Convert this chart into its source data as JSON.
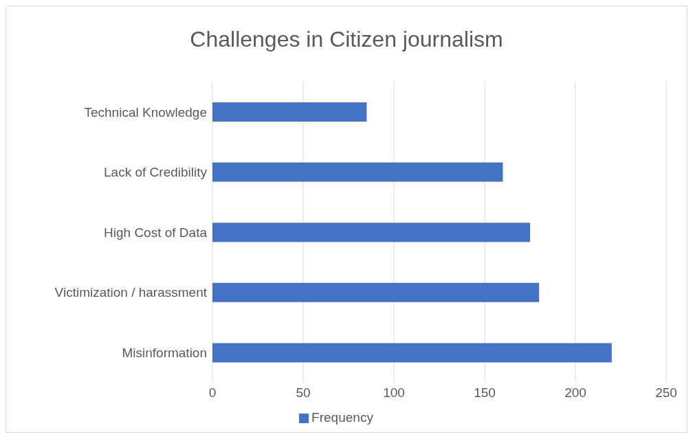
{
  "chart_data": {
    "type": "bar",
    "orientation": "horizontal",
    "title": "Challenges in Citizen journalism",
    "categories": [
      "Technical Knowledge",
      "Lack of Credibility",
      "High Cost of Data",
      "Victimization / harassment",
      "Misinformation"
    ],
    "series": [
      {
        "name": "Frequency",
        "color": "#4472c4",
        "values": [
          85,
          160,
          175,
          180,
          220
        ]
      }
    ],
    "xlim": [
      0,
      250
    ],
    "xticks": [
      0,
      50,
      100,
      150,
      200,
      250
    ],
    "grid": "x",
    "legend": "bottom"
  }
}
